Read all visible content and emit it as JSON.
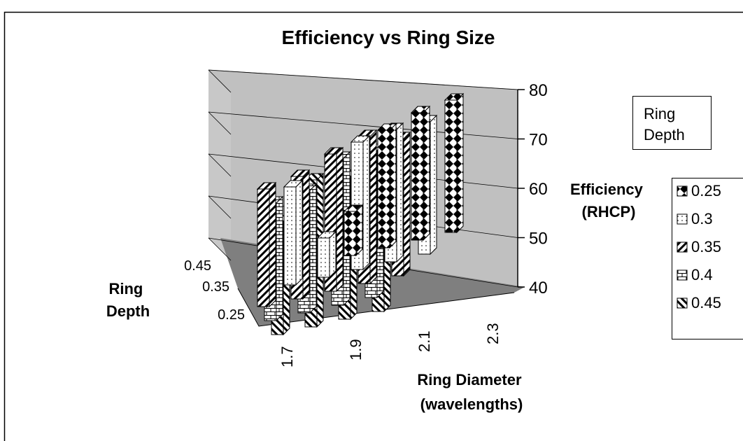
{
  "chart_data": {
    "type": "bar",
    "subtype": "3d-column",
    "title": "Efficiency vs Ring Size",
    "xlabel": [
      "Ring Diameter",
      "(wavelengths)"
    ],
    "ylabel": [
      "Efficiency",
      "(RHCP)"
    ],
    "zlabel": [
      "Ring",
      "Depth"
    ],
    "legend_title": [
      "Ring",
      "Depth"
    ],
    "legend_position": "right",
    "x_tick_labels": [
      "1.7",
      "1.9",
      "2.1",
      "2.3"
    ],
    "z_tick_labels": [
      "0.45",
      "0.35",
      "0.25"
    ],
    "y_ticks": [
      "80",
      "70",
      "60",
      "50",
      "40"
    ],
    "ylim": [
      40,
      80
    ],
    "grid": true,
    "x": [
      1.7,
      1.8,
      1.9,
      2.0,
      2.1,
      2.2,
      2.3
    ],
    "series": [
      {
        "name": "0.25",
        "pattern": "diamond",
        "values": [
          null,
          null,
          null,
          49,
          64,
          66,
          67
        ]
      },
      {
        "name": "0.3",
        "pattern": "dotted",
        "values": [
          null,
          60,
          48,
          66,
          67,
          67,
          null
        ]
      },
      {
        "name": "0.35",
        "pattern": "diagonal-up",
        "values": [
          64,
          65,
          68,
          70,
          68,
          null,
          null
        ]
      },
      {
        "name": "0.4",
        "pattern": "brick",
        "values": [
          64,
          65,
          70,
          70,
          null,
          null,
          null
        ]
      },
      {
        "name": "0.45",
        "pattern": "diagonal-down",
        "values": [
          63,
          70,
          69,
          68,
          null,
          null,
          null
        ]
      }
    ]
  }
}
